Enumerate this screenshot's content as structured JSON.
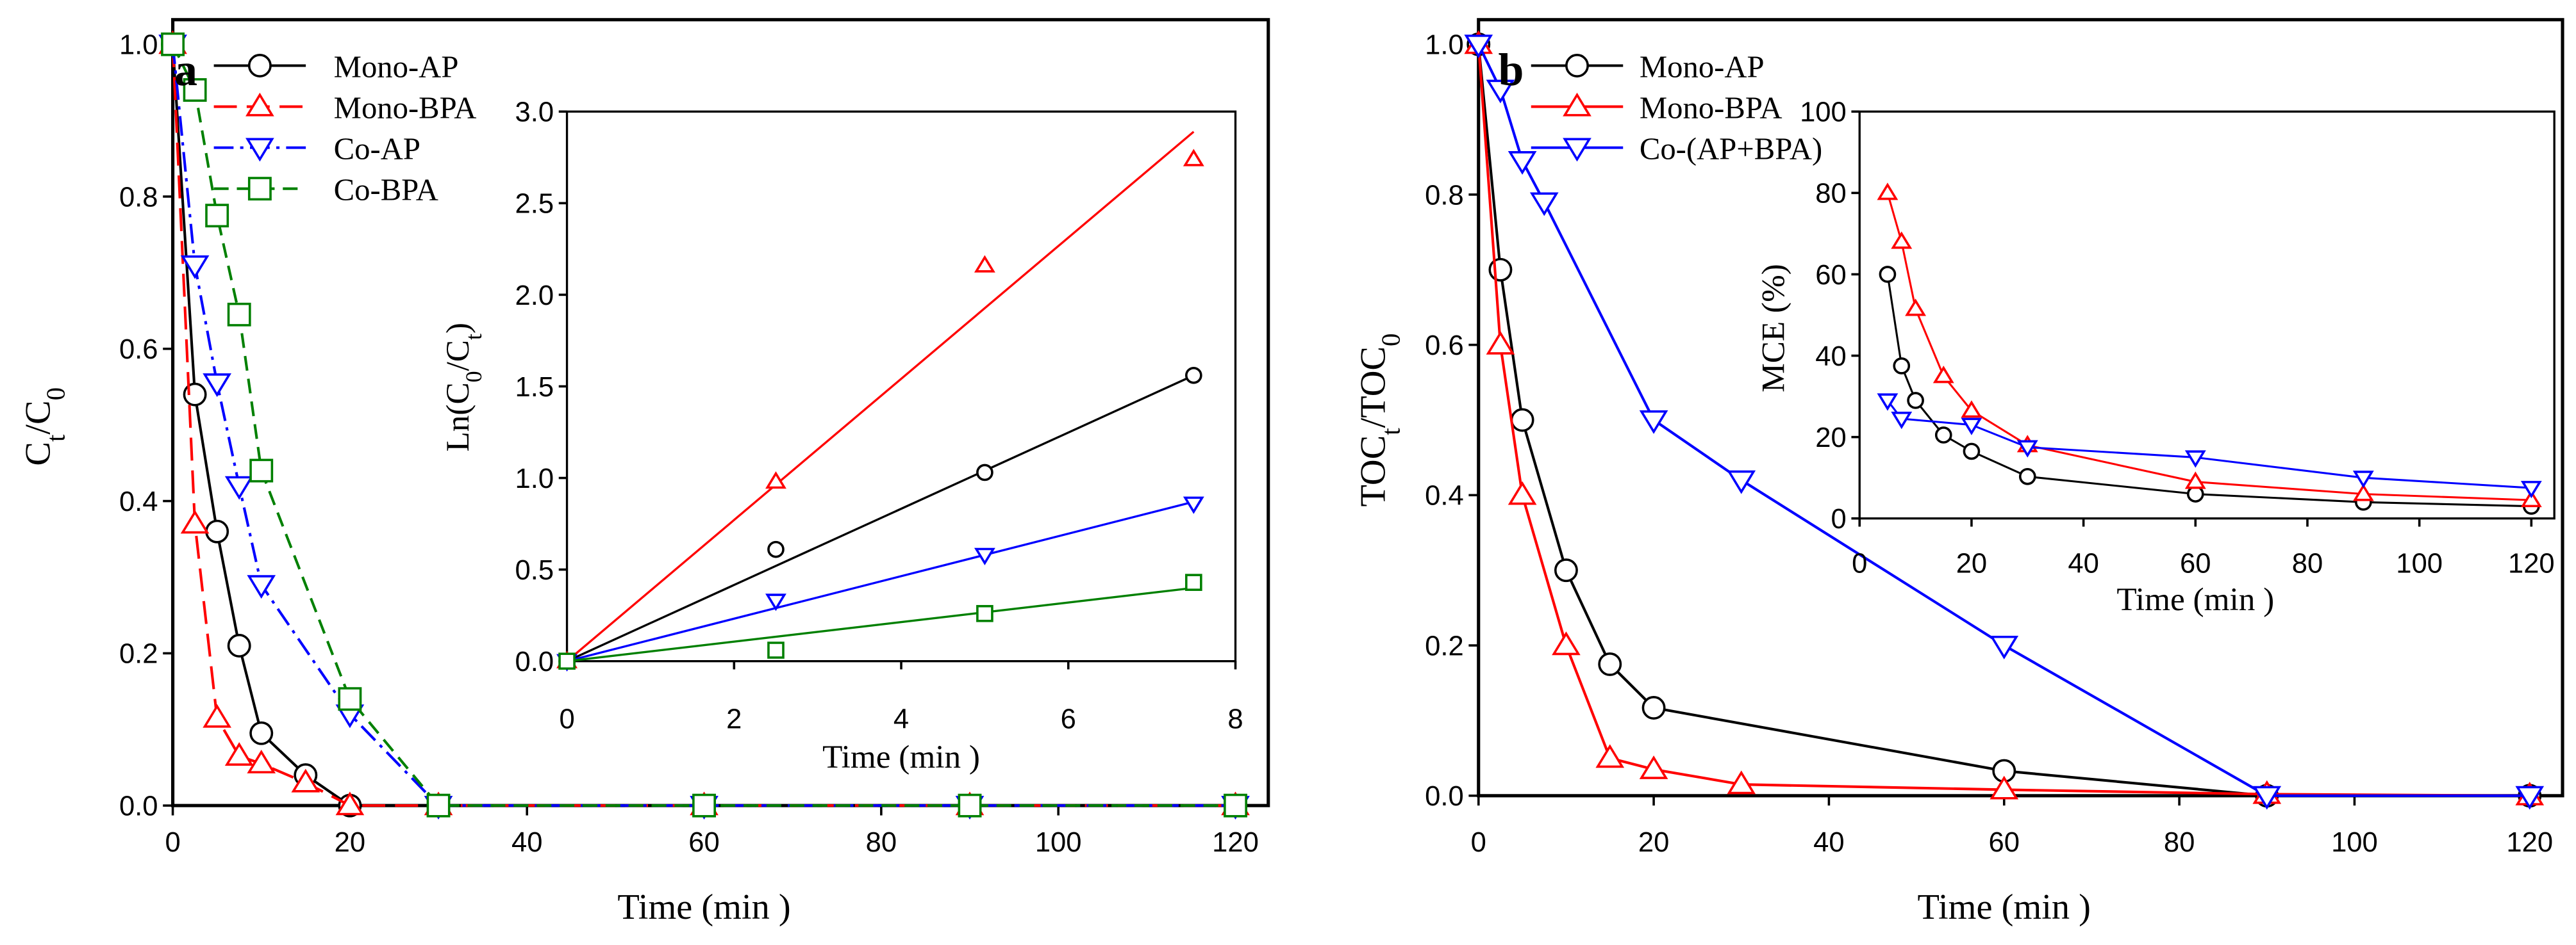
{
  "chart_data": [
    {
      "type": "line",
      "panel_label": "a",
      "xlabel": "Time (min )",
      "ylabel_parts": [
        [
          "C",
          ""
        ],
        [
          "t",
          "sub"
        ],
        [
          "/C",
          ""
        ],
        [
          "0",
          "sub"
        ]
      ],
      "xlim": [
        0,
        120
      ],
      "ylim": [
        0,
        1.0
      ],
      "xticks": [
        0,
        20,
        40,
        60,
        80,
        100,
        120
      ],
      "yticks": [
        "0.0",
        "0.2",
        "0.4",
        "0.6",
        "0.8",
        "1.0"
      ],
      "legend": "top-left",
      "series": [
        {
          "name": "Mono-AP",
          "color": "#000000",
          "marker": "circle",
          "dash": "",
          "x": [
            0,
            2.5,
            5,
            7.5,
            10,
            15,
            20,
            30,
            60,
            90,
            120
          ],
          "y": [
            1,
            0.54,
            0.36,
            0.21,
            0.095,
            0.04,
            0,
            0,
            0,
            0,
            0
          ]
        },
        {
          "name": "Mono-BPA",
          "color": "#ff0000",
          "marker": "triangle-up",
          "dash": "14,6",
          "x": [
            0,
            2.5,
            5,
            7.5,
            10,
            15,
            20,
            30,
            60,
            90,
            120
          ],
          "y": [
            1,
            0.37,
            0.115,
            0.065,
            0.055,
            0.03,
            0,
            0,
            0,
            0,
            0
          ]
        },
        {
          "name": "Co-AP",
          "color": "#0000ff",
          "marker": "triangle-down",
          "dash": "12,4,2,4",
          "x": [
            0,
            2.5,
            5,
            7.5,
            10,
            20,
            30,
            60,
            90,
            120
          ],
          "y": [
            1,
            0.71,
            0.555,
            0.42,
            0.29,
            0.12,
            0,
            0,
            0,
            0
          ]
        },
        {
          "name": "Co-BPA",
          "color": "#008000",
          "marker": "square",
          "dash": "9,5",
          "x": [
            0,
            2.5,
            5,
            7.5,
            10,
            20,
            30,
            60,
            90,
            120
          ],
          "y": [
            1,
            0.94,
            0.775,
            0.645,
            0.44,
            0.14,
            0,
            0,
            0,
            0
          ]
        }
      ]
    },
    {
      "type": "scatter",
      "xlabel": "Time (min )",
      "ylabel_parts": [
        [
          "Ln(C",
          ""
        ],
        [
          "0",
          "sub"
        ],
        [
          "/C",
          ""
        ],
        [
          "t",
          "sub"
        ],
        [
          ")",
          ""
        ]
      ],
      "xlim": [
        0,
        8
      ],
      "ylim": [
        0,
        3.0
      ],
      "xticks": [
        0,
        2,
        4,
        6,
        8
      ],
      "yticks": [
        "0.0",
        "0.5",
        "1.0",
        "1.5",
        "2.0",
        "2.5",
        "3.0"
      ],
      "series": [
        {
          "name": "Mono-AP",
          "color": "#000000",
          "marker": "circle",
          "x": [
            0,
            2.5,
            5,
            7.5
          ],
          "y": [
            0,
            0.61,
            1.03,
            1.56
          ],
          "fit": [
            [
              0,
              0
            ],
            [
              7.5,
              1.56
            ]
          ]
        },
        {
          "name": "Mono-BPA",
          "color": "#ff0000",
          "marker": "triangle-up",
          "x": [
            0,
            2.5,
            5,
            7.5
          ],
          "y": [
            0,
            0.98,
            2.16,
            2.74
          ],
          "fit": [
            [
              0,
              0
            ],
            [
              7.5,
              2.89
            ]
          ]
        },
        {
          "name": "Co-AP",
          "color": "#0000ff",
          "marker": "triangle-down",
          "x": [
            0,
            2.5,
            5,
            7.5
          ],
          "y": [
            0,
            0.33,
            0.58,
            0.86
          ],
          "fit": [
            [
              0,
              0
            ],
            [
              7.5,
              0.87
            ]
          ]
        },
        {
          "name": "Co-BPA",
          "color": "#008000",
          "marker": "square",
          "x": [
            0,
            2.5,
            5,
            7.5
          ],
          "y": [
            0,
            0.06,
            0.26,
            0.43
          ],
          "fit": [
            [
              0,
              0
            ],
            [
              7.5,
              0.4
            ]
          ]
        }
      ]
    },
    {
      "type": "line",
      "panel_label": "b",
      "xlabel": "Time (min )",
      "ylabel_parts": [
        [
          "TOC",
          ""
        ],
        [
          "t",
          "sub"
        ],
        [
          "/TOC",
          ""
        ],
        [
          "0",
          "sub"
        ]
      ],
      "xlim": [
        0,
        120
      ],
      "ylim": [
        0,
        1.0
      ],
      "xticks": [
        0,
        20,
        40,
        60,
        80,
        100,
        120
      ],
      "yticks": [
        "0.0",
        "0.2",
        "0.4",
        "0.6",
        "0.8",
        "1.0"
      ],
      "legend": "top-left",
      "series": [
        {
          "name": "Mono-AP",
          "color": "#000000",
          "marker": "circle",
          "dash": "",
          "x": [
            0,
            2.5,
            5,
            10,
            15,
            20,
            60,
            90,
            120
          ],
          "y": [
            1,
            0.7,
            0.5,
            0.3,
            0.175,
            0.117,
            0.033,
            0,
            0
          ]
        },
        {
          "name": "Mono-BPA",
          "color": "#ff0000",
          "marker": "triangle-up",
          "dash": "",
          "x": [
            0,
            2.5,
            5,
            10,
            15,
            20,
            30,
            60,
            90,
            120
          ],
          "y": [
            1,
            0.6,
            0.4,
            0.2,
            0.05,
            0.035,
            0.015,
            0.008,
            0.002,
            0
          ]
        },
        {
          "name": "Co-(AP+BPA)",
          "color": "#0000ff",
          "marker": "triangle-down",
          "dash": "",
          "x": [
            0,
            2.5,
            5,
            7.5,
            20,
            30,
            60,
            90,
            120
          ],
          "y": [
            1,
            0.94,
            0.845,
            0.79,
            0.5,
            0.42,
            0.2,
            0,
            0
          ]
        }
      ]
    },
    {
      "type": "line",
      "xlabel": "Time (min )",
      "ylabel_parts": [
        [
          "MCE (%)",
          ""
        ]
      ],
      "xlim": [
        0,
        120
      ],
      "ylim": [
        0,
        100
      ],
      "xticks": [
        0,
        20,
        40,
        60,
        80,
        100,
        120
      ],
      "yticks": [
        "0",
        "20",
        "40",
        "60",
        "80",
        "100"
      ],
      "series": [
        {
          "name": "Mono-AP",
          "color": "#000000",
          "marker": "circle",
          "dash": "",
          "x": [
            5,
            7.5,
            10,
            15,
            20,
            30,
            60,
            90,
            120
          ],
          "y": [
            60,
            37.5,
            29,
            20.5,
            16.5,
            10.3,
            6,
            4,
            3
          ]
        },
        {
          "name": "Mono-BPA",
          "color": "#ff0000",
          "marker": "triangle-up",
          "dash": "",
          "x": [
            5,
            7.5,
            10,
            15,
            20,
            30,
            60,
            90,
            120
          ],
          "y": [
            80,
            68,
            51.5,
            35,
            26.5,
            18,
            9,
            6,
            4.5
          ]
        },
        {
          "name": "Co-(AP+BPA)",
          "color": "#0000ff",
          "marker": "triangle-down",
          "dash": "",
          "x": [
            5,
            7.5,
            20,
            30,
            60,
            90,
            120
          ],
          "y": [
            29,
            24.5,
            23,
            17.5,
            15,
            10,
            7.5
          ]
        }
      ]
    }
  ]
}
